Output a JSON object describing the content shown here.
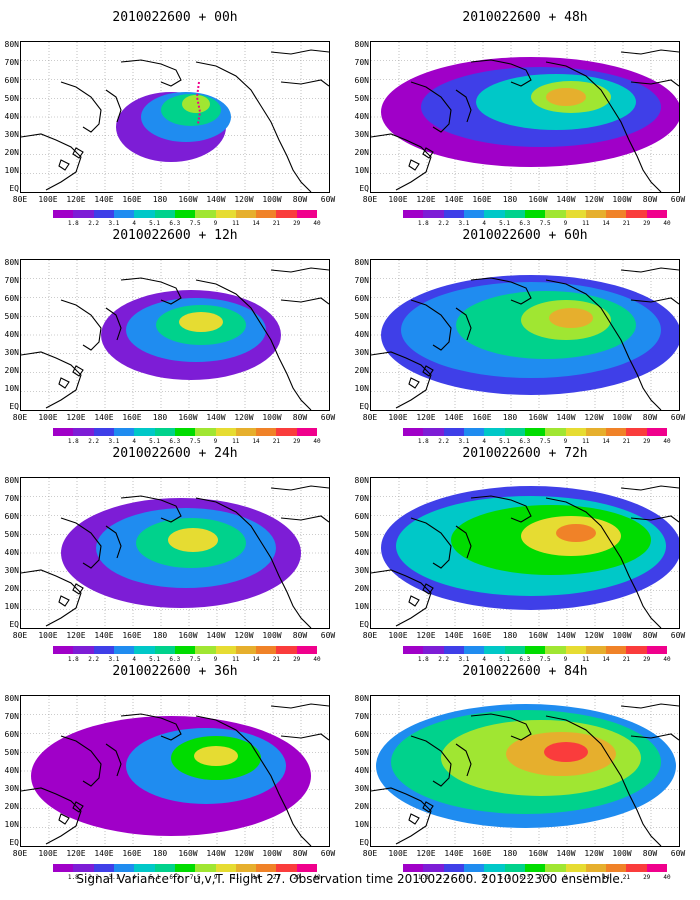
{
  "caption": "Signal Variance for u,v,T. Flight 27. Observation time 2010022600. 2010022300 ensemble.",
  "lat_labels": [
    "80N",
    "70N",
    "60N",
    "50N",
    "40N",
    "30N",
    "20N",
    "10N",
    "EQ"
  ],
  "lon_labels": [
    "80E",
    "100E",
    "120E",
    "140E",
    "160E",
    "180",
    "160W",
    "140W",
    "120W",
    "100W",
    "80W",
    "60W"
  ],
  "colorbar": {
    "labels": [
      "1.8",
      "2.2",
      "3.1",
      "4",
      "5.1",
      "6.3",
      "7.5",
      "9",
      "11",
      "14",
      "21",
      "29",
      "40"
    ],
    "colors": [
      "#a000c8",
      "#7d1dd6",
      "#3f3fe8",
      "#1f8cf0",
      "#00c8c8",
      "#00d28c",
      "#00dc00",
      "#a0e632",
      "#e6dc32",
      "#e6af2d",
      "#f08228",
      "#fa3c3c",
      "#f0008c"
    ]
  },
  "panels": [
    {
      "title": "2010022600 + 00h"
    },
    {
      "title": "2010022600 + 48h"
    },
    {
      "title": "2010022600 + 12h"
    },
    {
      "title": "2010022600 + 60h"
    },
    {
      "title": "2010022600 + 24h"
    },
    {
      "title": "2010022600 + 72h"
    },
    {
      "title": "2010022600 + 36h"
    },
    {
      "title": "2010022600 + 84h"
    }
  ]
}
